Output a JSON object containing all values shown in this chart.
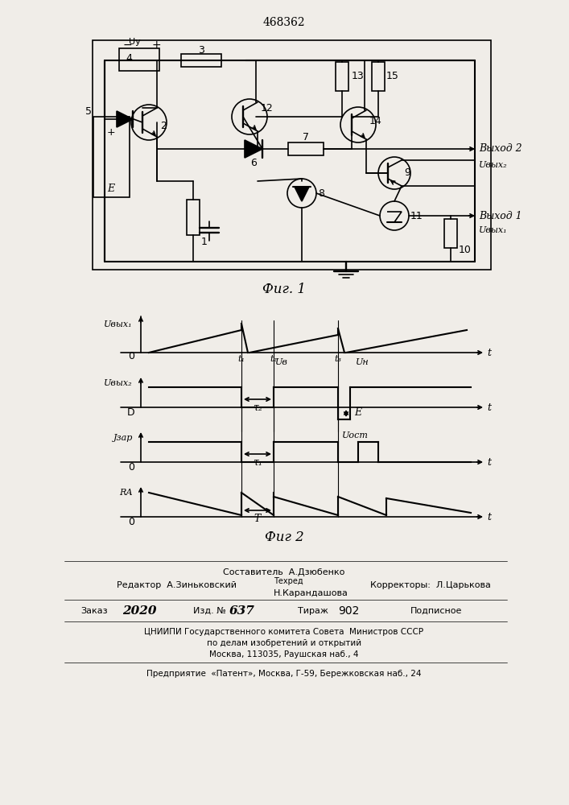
{
  "title": "468362",
  "fig1_label": "Фиг. 1",
  "fig2_label": "Фиг 2",
  "bottom_text": [
    "Составитель  А.Дзюбенко",
    "Редактор  А.Зиньковский  Техред              Корректоры:  Л.Царькова",
    "                          Н.Карандашова",
    "Заказ 2020    Изд. № 637    Тираж  902    Подписное",
    "ЦНИИПИ Государственного комитета Совета  Министров СССР",
    "по делам изобретений и открытий",
    "Москва, 113035, Раушская наб., 4",
    "Предприятие  «Патент», Москва, Г-59, Бережковская наб., 24"
  ],
  "background_color": "#f0ede8"
}
